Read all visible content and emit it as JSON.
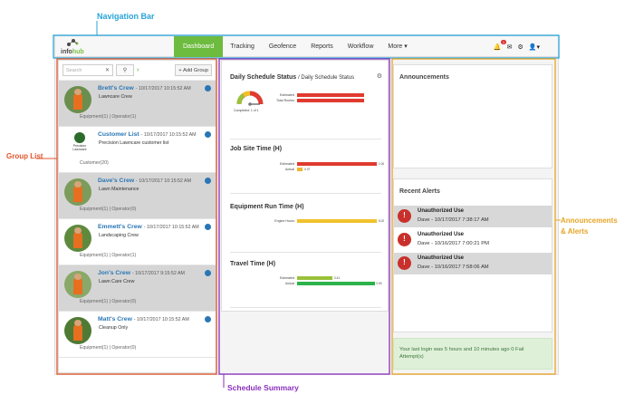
{
  "callouts": {
    "nav": "Navigation Bar",
    "group": "Group List",
    "schedule": "Schedule Summary",
    "ann1": "Announcements",
    "ann2": "& Alerts"
  },
  "colors": {
    "accent": "#6dbb3f",
    "link": "#2a76b5",
    "alert": "#c9302c"
  },
  "brand": {
    "logo_prefix": "info",
    "logo_suffix": "hub"
  },
  "nav": {
    "items": [
      {
        "label": "Dashboard",
        "active": true
      },
      {
        "label": "Tracking"
      },
      {
        "label": "Geofence"
      },
      {
        "label": "Reports"
      },
      {
        "label": "Workflow"
      },
      {
        "label": "More ▾"
      }
    ],
    "notif_count": "1"
  },
  "groups": {
    "search_placeholder": "Search",
    "add_label": "Add Group",
    "crews": [
      {
        "name": "Brett's Crew",
        "date": "- 10/17/2017 10:15:52 AM",
        "sub": "Lawncare Crew",
        "counts": "Equipment(1) | Operator(1)",
        "gray": true
      },
      {
        "name": "Customer List",
        "date": "- 10/17/2017 10:15:52 AM",
        "sub": "Precision Lawncare customer list",
        "counts": "Customer(20)",
        "gray": false,
        "logo_text": "Precision Lawncare"
      },
      {
        "name": "Dave's Crew",
        "date": "- 10/17/2017 10:15:52 AM",
        "sub": "Lawn Maintenance",
        "counts": "Equipment(1) | Operator(0)",
        "gray": true
      },
      {
        "name": "Emmett's Crew",
        "date": "- 10/17/2017 10:15:52 AM",
        "sub": "Landscaping Crew",
        "counts": "Equipment(1) | Operator(1)",
        "gray": false
      },
      {
        "name": "Jon's Crew",
        "date": "- 10/17/2017 9:15:52 AM",
        "sub": "Lawn Care Crew",
        "counts": "Equipment(1) | Operator(0)",
        "gray": true
      },
      {
        "name": "Matt's Crew",
        "date": "- 10/17/2017 10:15:52 AM",
        "sub": "Cleanup Only",
        "counts": "Equipment(1) | Operator(0)",
        "gray": false
      }
    ]
  },
  "schedule": {
    "status_title": "Daily Schedule Status",
    "status_sub": "/ Daily Schedule Status",
    "status_bars": [
      {
        "label": "Estimated",
        "value": 1,
        "color": "#e03a2f"
      },
      {
        "label": "Total Routes",
        "value": 1,
        "color": "#e03a2f"
      }
    ],
    "gauge_label": "Completed: 1 of 1",
    "jobsite_title": "Job Site Time (H)",
    "jobsite_bars": [
      {
        "label": "Estimated",
        "value": 1.0,
        "text": "1.00",
        "color": "#e03a2f"
      },
      {
        "label": "Actual",
        "value": 0.07,
        "text": "0.07",
        "color": "#f0b52b"
      }
    ],
    "equip_title": "Equipment Run Time (H)",
    "equip_bars": [
      {
        "label": "Engine Hours",
        "value": 5.02,
        "text": "5.02",
        "color": "#f0c12b"
      }
    ],
    "travel_title": "Travel Time (H)",
    "travel_bars": [
      {
        "label": "Estimated",
        "value": 0.41,
        "text": "0.41",
        "color": "#9bc13a"
      },
      {
        "label": "Actual",
        "value": 0.9,
        "text": "0.90",
        "color": "#2bb34a"
      }
    ]
  },
  "announcements": {
    "title": "Announcements"
  },
  "alerts": {
    "title": "Recent Alerts",
    "items": [
      {
        "title": "Unauthorized Use",
        "detail": "Dave - 10/17/2017 7:38:17 AM",
        "gray": true
      },
      {
        "title": "Unauthorized Use",
        "detail": "Dave - 10/16/2017 7:00:21 PM",
        "gray": false
      },
      {
        "title": "Unauthorized Use",
        "detail": "Dave - 10/16/2017 7:58:06 AM",
        "gray": true
      }
    ]
  },
  "last_login": "Your last login was 5 hours and 10 minutes ago 0 Fail Attempt(s)"
}
